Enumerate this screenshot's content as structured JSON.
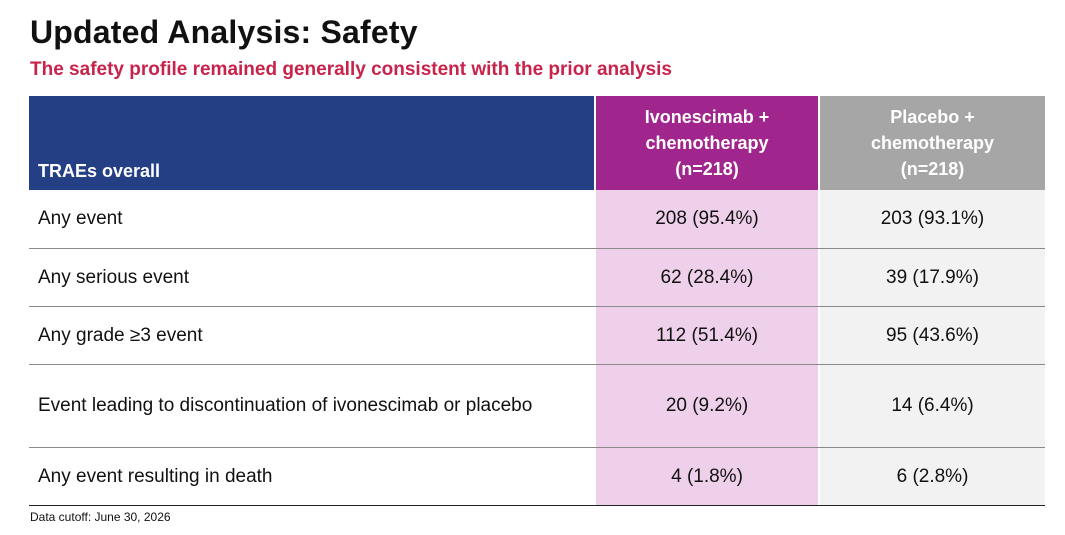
{
  "title": "Updated Analysis: Safety",
  "subtitle": "The safety profile remained generally consistent with the prior analysis",
  "table": {
    "header": {
      "row_label": "TRAEs overall",
      "col1_line1": "Ivonescimab +",
      "col1_line2": "chemotherapy",
      "col1_line3": "(n=218)",
      "col2_line1": "Placebo +",
      "col2_line2": "chemotherapy",
      "col2_line3": "(n=218)"
    },
    "rows": [
      {
        "label": "Any event",
        "ivo": "208 (95.4%)",
        "pbo": "203 (93.1%)"
      },
      {
        "label": "Any serious event",
        "ivo": "62 (28.4%)",
        "pbo": "39 (17.9%)"
      },
      {
        "label": "Any grade ≥3 event",
        "ivo": "112 (51.4%)",
        "pbo": "95 (43.6%)"
      },
      {
        "label": "Event leading to discontinuation of ivonescimab or placebo",
        "ivo": "20 (9.2%)",
        "pbo": "14 (6.4%)"
      },
      {
        "label": "Any event resulting in death",
        "ivo": "4 (1.8%)",
        "pbo": "6 (2.8%)"
      }
    ]
  },
  "footnote": "Data cutoff: June 30, 2026",
  "colors": {
    "header_navy": "#243f83",
    "header_magenta": "#a0268d",
    "header_gray": "#a6a6a6",
    "col_pink": "#efd0ea",
    "col_light_gray": "#f2f2f2",
    "subtitle_red": "#c8234a"
  }
}
